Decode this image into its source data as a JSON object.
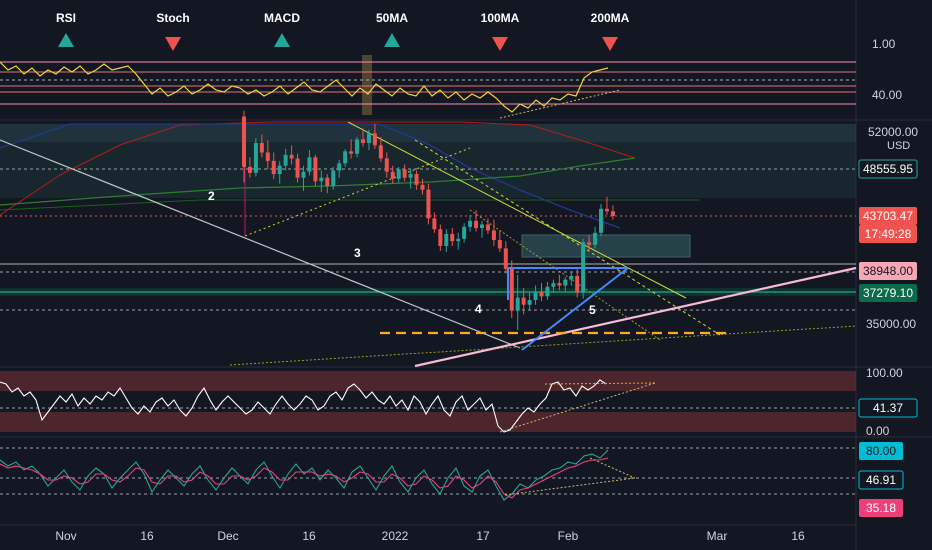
{
  "indicators": [
    {
      "label": "RSI",
      "signal": "up",
      "color": "#26a69a"
    },
    {
      "label": "Stoch",
      "signal": "down",
      "color": "#ef5350"
    },
    {
      "label": "MACD",
      "signal": "up",
      "color": "#26a69a"
    },
    {
      "label": "50MA",
      "signal": "up",
      "color": "#26a69a"
    },
    {
      "label": "100MA",
      "signal": "down",
      "color": "#ef5350"
    },
    {
      "label": "200MA",
      "signal": "down",
      "color": "#ef5350"
    }
  ],
  "top_pane": {
    "ticks": [
      "1.00",
      "40.00"
    ]
  },
  "main_pane": {
    "currency": "USD",
    "top_tick": "52000.00",
    "tick_35000": "35000.00",
    "price_labels": [
      {
        "text": "48555.95",
        "style": "dark",
        "color": "#26a69a"
      },
      {
        "text": "43703.47",
        "style": "filled",
        "color": "#ef5350"
      },
      {
        "text": "17:49:28",
        "style": "filled",
        "color": "#ef5350"
      },
      {
        "text": "38948.00",
        "style": "light",
        "color": "#f8a5b4"
      },
      {
        "text": "37279.10",
        "style": "filled",
        "color": "#0b6b4b"
      }
    ],
    "wave_labels": [
      "2",
      "3",
      "4",
      "5"
    ]
  },
  "rsi_pane": {
    "ticks": [
      "100.00",
      "0.00"
    ],
    "value_label": {
      "text": "41.37",
      "color": "#00bcd4"
    }
  },
  "stoch_pane": {
    "labels": [
      {
        "text": "80.00",
        "color": "#00bcd4",
        "style": "filled"
      },
      {
        "text": "46.91",
        "color": "#00bcd4",
        "style": "dark"
      },
      {
        "text": "35.18",
        "color": "#ec407a",
        "style": "filled"
      }
    ]
  },
  "x_axis": {
    "ticks": [
      "Nov",
      "16",
      "Dec",
      "16",
      "2022",
      "17",
      "Feb",
      "Mar",
      "16"
    ]
  },
  "chart_data": {
    "type": "candlestick",
    "symbol_unit": "USD",
    "candles": [
      {
        "o": 52000,
        "h": 52500,
        "l": 46500,
        "c": 47800
      },
      {
        "o": 47800,
        "h": 48600,
        "l": 46900,
        "c": 47300
      },
      {
        "o": 47300,
        "h": 50200,
        "l": 47000,
        "c": 49800
      },
      {
        "o": 49800,
        "h": 50500,
        "l": 48600,
        "c": 49000
      },
      {
        "o": 49000,
        "h": 50000,
        "l": 47600,
        "c": 48300
      },
      {
        "o": 48300,
        "h": 49000,
        "l": 46800,
        "c": 47200
      },
      {
        "o": 47200,
        "h": 48300,
        "l": 46400,
        "c": 47900
      },
      {
        "o": 47900,
        "h": 49300,
        "l": 47500,
        "c": 48800
      },
      {
        "o": 48800,
        "h": 49600,
        "l": 48000,
        "c": 48500
      },
      {
        "o": 48500,
        "h": 48900,
        "l": 46500,
        "c": 46900
      },
      {
        "o": 46900,
        "h": 47900,
        "l": 45800,
        "c": 47400
      },
      {
        "o": 47400,
        "h": 49200,
        "l": 47100,
        "c": 48600
      },
      {
        "o": 48600,
        "h": 48800,
        "l": 46200,
        "c": 46600
      },
      {
        "o": 46600,
        "h": 47500,
        "l": 45700,
        "c": 46900
      },
      {
        "o": 46900,
        "h": 47200,
        "l": 45600,
        "c": 46200
      },
      {
        "o": 46200,
        "h": 47800,
        "l": 45900,
        "c": 47500
      },
      {
        "o": 47500,
        "h": 48400,
        "l": 46900,
        "c": 48100
      },
      {
        "o": 48100,
        "h": 49300,
        "l": 47800,
        "c": 49100
      },
      {
        "o": 49100,
        "h": 50100,
        "l": 48500,
        "c": 48900
      },
      {
        "o": 48900,
        "h": 50300,
        "l": 48600,
        "c": 50100
      },
      {
        "o": 50100,
        "h": 51000,
        "l": 49500,
        "c": 49800
      },
      {
        "o": 49800,
        "h": 50900,
        "l": 49200,
        "c": 50600
      },
      {
        "o": 50600,
        "h": 51400,
        "l": 49300,
        "c": 49600
      },
      {
        "o": 49600,
        "h": 50300,
        "l": 48200,
        "c": 48500
      },
      {
        "o": 48500,
        "h": 49000,
        "l": 46900,
        "c": 47400
      },
      {
        "o": 47400,
        "h": 47900,
        "l": 46400,
        "c": 46800
      },
      {
        "o": 46800,
        "h": 47800,
        "l": 46500,
        "c": 47600
      },
      {
        "o": 47600,
        "h": 48000,
        "l": 46600,
        "c": 46900
      },
      {
        "o": 46900,
        "h": 47600,
        "l": 46000,
        "c": 47200
      },
      {
        "o": 47200,
        "h": 47500,
        "l": 45900,
        "c": 46300
      },
      {
        "o": 46300,
        "h": 46800,
        "l": 45500,
        "c": 45900
      },
      {
        "o": 45900,
        "h": 46400,
        "l": 43000,
        "c": 43500
      },
      {
        "o": 43500,
        "h": 44000,
        "l": 42300,
        "c": 42600
      },
      {
        "o": 42600,
        "h": 43000,
        "l": 40800,
        "c": 41200
      },
      {
        "o": 41200,
        "h": 42600,
        "l": 40700,
        "c": 42200
      },
      {
        "o": 42200,
        "h": 42700,
        "l": 41200,
        "c": 41600
      },
      {
        "o": 41600,
        "h": 42300,
        "l": 40900,
        "c": 41800
      },
      {
        "o": 41800,
        "h": 43100,
        "l": 41500,
        "c": 42800
      },
      {
        "o": 42800,
        "h": 43800,
        "l": 42400,
        "c": 43300
      },
      {
        "o": 43300,
        "h": 44200,
        "l": 42400,
        "c": 42700
      },
      {
        "o": 42700,
        "h": 43300,
        "l": 41900,
        "c": 43000
      },
      {
        "o": 43000,
        "h": 43500,
        "l": 42200,
        "c": 42500
      },
      {
        "o": 42500,
        "h": 43400,
        "l": 41200,
        "c": 41700
      },
      {
        "o": 41700,
        "h": 42500,
        "l": 40700,
        "c": 41000
      },
      {
        "o": 41000,
        "h": 41600,
        "l": 38900,
        "c": 39300
      },
      {
        "o": 39300,
        "h": 40000,
        "l": 35200,
        "c": 35800
      },
      {
        "o": 35800,
        "h": 38800,
        "l": 34200,
        "c": 36900
      },
      {
        "o": 36900,
        "h": 37700,
        "l": 35500,
        "c": 36300
      },
      {
        "o": 36300,
        "h": 37300,
        "l": 35800,
        "c": 36700
      },
      {
        "o": 36700,
        "h": 37900,
        "l": 36300,
        "c": 37400
      },
      {
        "o": 37400,
        "h": 38100,
        "l": 36600,
        "c": 37000
      },
      {
        "o": 37000,
        "h": 38200,
        "l": 36700,
        "c": 37800
      },
      {
        "o": 37800,
        "h": 38400,
        "l": 37300,
        "c": 38100
      },
      {
        "o": 38100,
        "h": 38800,
        "l": 37500,
        "c": 37900
      },
      {
        "o": 37900,
        "h": 38600,
        "l": 37400,
        "c": 38400
      },
      {
        "o": 38400,
        "h": 39100,
        "l": 37900,
        "c": 38700
      },
      {
        "o": 38700,
        "h": 39300,
        "l": 36900,
        "c": 37300
      },
      {
        "o": 37300,
        "h": 41800,
        "l": 36800,
        "c": 41500
      },
      {
        "o": 41500,
        "h": 42100,
        "l": 40700,
        "c": 41300
      },
      {
        "o": 41300,
        "h": 42800,
        "l": 41000,
        "c": 42300
      },
      {
        "o": 42300,
        "h": 44700,
        "l": 42000,
        "c": 44300
      },
      {
        "o": 44300,
        "h": 45300,
        "l": 43800,
        "c": 44100
      },
      {
        "o": 44100,
        "h": 44600,
        "l": 43400,
        "c": 43703
      }
    ]
  }
}
